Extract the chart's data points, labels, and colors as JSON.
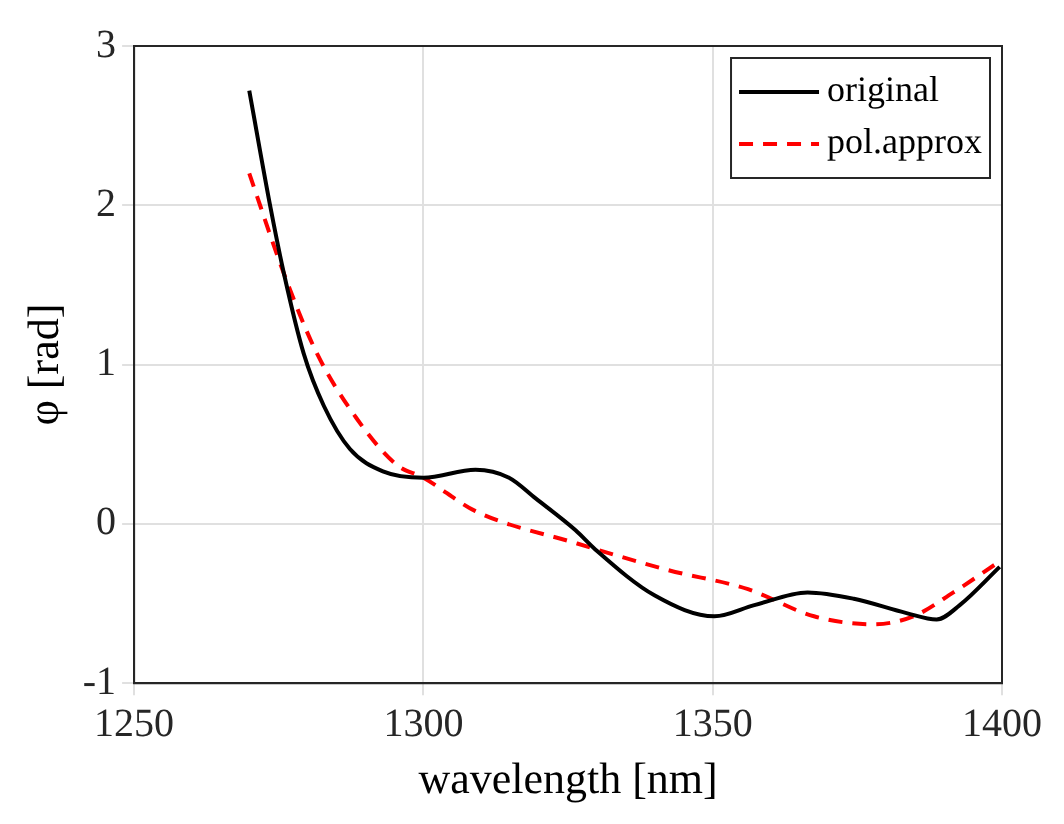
{
  "chart_data": {
    "type": "line",
    "xlabel": "wavelength [nm]",
    "ylabel": "φ [rad]",
    "xlim": [
      1250,
      1400
    ],
    "xticks": [
      1250,
      1300,
      1350,
      1400
    ],
    "ylim": [
      -1,
      3
    ],
    "yticks": [
      -1,
      0,
      1,
      2,
      3
    ],
    "grid": true,
    "legend": "top right",
    "marker": "none",
    "series": [
      {
        "name": "original",
        "color": "#000000",
        "line_style": "solid",
        "x": [
          1269.9,
          1273.6,
          1275.9,
          1279.3,
          1282.8,
          1287.3,
          1293,
          1300,
          1309,
          1314.8,
          1319.4,
          1326.3,
          1329.7,
          1340,
          1350.3,
          1357.2,
          1366.4,
          1374.4,
          1383.5,
          1388.7,
          1392.7,
          1399.6
        ],
        "values": [
          2.72,
          1.98,
          1.57,
          1.07,
          0.74,
          0.47,
          0.33,
          0.29,
          0.34,
          0.29,
          0.16,
          -0.04,
          -0.16,
          -0.45,
          -0.58,
          -0.51,
          -0.43,
          -0.47,
          -0.56,
          -0.6,
          -0.51,
          -0.27
        ]
      },
      {
        "name": "pol.approx",
        "color": "#ff0000",
        "line_style": "dashed",
        "x": [
          1269.9,
          1275.9,
          1281.6,
          1288.5,
          1295.4,
          1300,
          1309,
          1326.3,
          1342.3,
          1356.1,
          1367.5,
          1377.8,
          1384.7,
          1391.6,
          1399
        ],
        "values": [
          2.2,
          1.57,
          1.07,
          0.66,
          0.37,
          0.29,
          0.08,
          -0.12,
          -0.29,
          -0.41,
          -0.58,
          -0.63,
          -0.58,
          -0.43,
          -0.25
        ]
      }
    ]
  }
}
